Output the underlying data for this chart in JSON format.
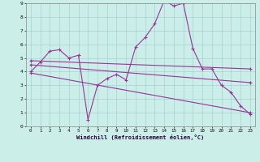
{
  "xlabel": "Windchill (Refroidissement éolien,°C)",
  "background_color": "#cceee8",
  "line_color": "#993399",
  "xlim": [
    -0.5,
    23.5
  ],
  "ylim": [
    0,
    9
  ],
  "xticks": [
    0,
    1,
    2,
    3,
    4,
    5,
    6,
    7,
    8,
    9,
    10,
    11,
    12,
    13,
    14,
    15,
    16,
    17,
    18,
    19,
    20,
    21,
    22,
    23
  ],
  "yticks": [
    0,
    1,
    2,
    3,
    4,
    5,
    6,
    7,
    8,
    9
  ],
  "series1_x": [
    0,
    1,
    2,
    3,
    4,
    5,
    6,
    7,
    8,
    9,
    10,
    11,
    12,
    13,
    14,
    15,
    16,
    17,
    18,
    19,
    20,
    21,
    22,
    23
  ],
  "series1_y": [
    4.0,
    4.7,
    5.5,
    5.6,
    5.0,
    5.2,
    0.5,
    3.0,
    3.5,
    3.8,
    3.4,
    5.8,
    6.5,
    7.5,
    9.2,
    8.8,
    9.0,
    5.7,
    4.2,
    4.2,
    3.0,
    2.5,
    1.5,
    0.9
  ],
  "series2_x": [
    0,
    23
  ],
  "series2_y": [
    4.5,
    3.2
  ],
  "series3_x": [
    0,
    23
  ],
  "series3_y": [
    4.8,
    4.2
  ],
  "series4_x": [
    0,
    23
  ],
  "series4_y": [
    3.9,
    1.0
  ]
}
